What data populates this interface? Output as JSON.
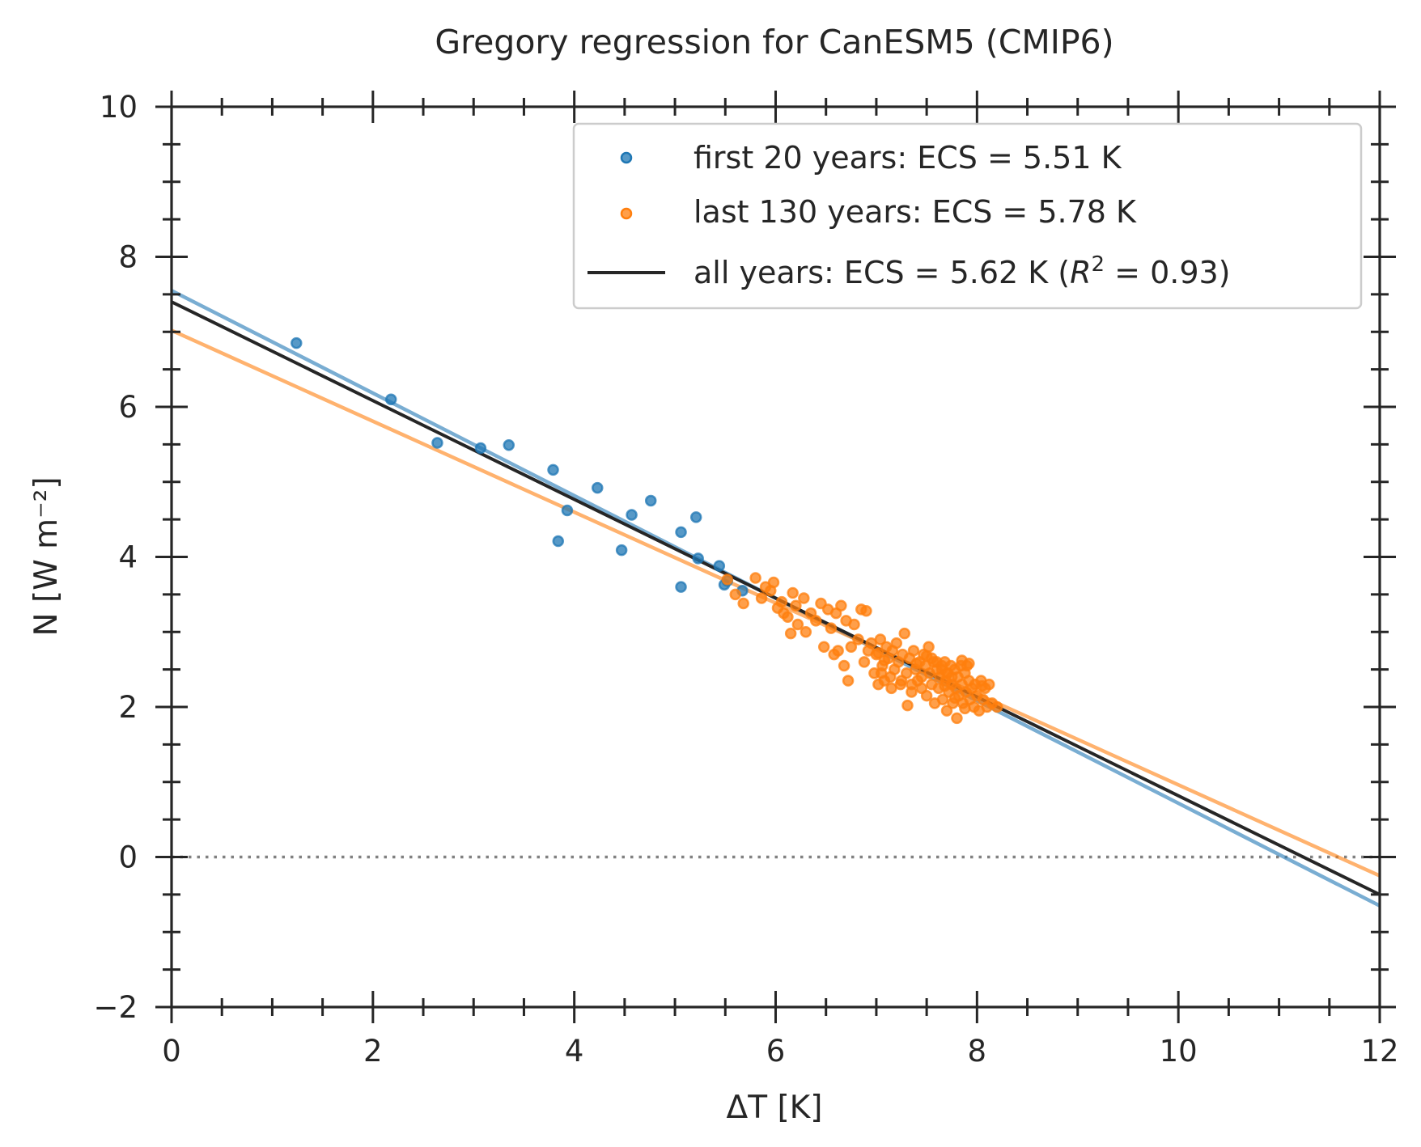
{
  "chart_data": {
    "type": "scatter",
    "title": "Gregory regression for CanESM5 (CMIP6)",
    "xlabel": "ΔT [K]",
    "ylabel": "N [W m⁻²]",
    "xlim": [
      0,
      12
    ],
    "ylim": [
      -2,
      10
    ],
    "x_ticks": [
      0,
      2,
      4,
      6,
      8,
      10,
      12
    ],
    "y_ticks": [
      -2,
      0,
      2,
      4,
      6,
      8,
      10
    ],
    "x_tick_labels": [
      "0",
      "2",
      "4",
      "6",
      "8",
      "10",
      "12"
    ],
    "y_tick_labels": [
      "−2",
      "0",
      "2",
      "4",
      "6",
      "8",
      "10"
    ],
    "grid": false,
    "zero_line": {
      "y": 0,
      "style": "dotted",
      "color": "#808080"
    },
    "legend_position": "top-right",
    "colors": {
      "first": "#1f77b4",
      "last": "#ff7f0e",
      "all": "#262626"
    },
    "legend": [
      {
        "label": "first 20 years: ECS = 5.51 K",
        "kind": "marker",
        "color": "#1f77b4"
      },
      {
        "label": "last 130 years: ECS = 5.78 K",
        "kind": "marker",
        "color": "#ff7f0e"
      },
      {
        "label_prefix": "all years: ECS = 5.62 K (",
        "label_r": "R",
        "label_sup": "2",
        "label_suffix": " = 0.93)",
        "kind": "line",
        "color": "#262626"
      }
    ],
    "regression_lines": [
      {
        "name": "first 20 years",
        "color": "#1f77b4",
        "x": [
          0,
          12
        ],
        "y": [
          7.55,
          -0.65
        ]
      },
      {
        "name": "last 130 years",
        "color": "#ff7f0e",
        "x": [
          0,
          12
        ],
        "y": [
          7.02,
          -0.25
        ]
      },
      {
        "name": "all years",
        "color": "#262626",
        "x": [
          0,
          12
        ],
        "y": [
          7.4,
          -0.5
        ]
      }
    ],
    "series": [
      {
        "name": "first 20 years",
        "color": "#1f77b4",
        "points": [
          [
            1.24,
            6.85
          ],
          [
            2.18,
            6.1
          ],
          [
            2.64,
            5.52
          ],
          [
            3.07,
            5.45
          ],
          [
            3.35,
            5.49
          ],
          [
            3.79,
            5.16
          ],
          [
            3.84,
            4.21
          ],
          [
            3.93,
            4.62
          ],
          [
            4.23,
            4.92
          ],
          [
            4.47,
            4.09
          ],
          [
            4.57,
            4.56
          ],
          [
            4.76,
            4.75
          ],
          [
            5.06,
            4.33
          ],
          [
            5.06,
            3.6
          ],
          [
            5.21,
            4.53
          ],
          [
            5.23,
            3.98
          ],
          [
            5.44,
            3.88
          ],
          [
            5.49,
            3.63
          ],
          [
            5.52,
            3.68
          ],
          [
            5.67,
            3.55
          ]
        ]
      },
      {
        "name": "last 130 years",
        "color": "#ff7f0e",
        "points": [
          [
            5.52,
            3.7
          ],
          [
            5.6,
            3.5
          ],
          [
            5.68,
            3.38
          ],
          [
            5.8,
            3.72
          ],
          [
            5.86,
            3.45
          ],
          [
            5.9,
            3.6
          ],
          [
            5.95,
            3.55
          ],
          [
            5.98,
            3.66
          ],
          [
            6.02,
            3.32
          ],
          [
            6.06,
            3.4
          ],
          [
            6.08,
            3.25
          ],
          [
            6.12,
            3.2
          ],
          [
            6.15,
            2.98
          ],
          [
            6.17,
            3.52
          ],
          [
            6.2,
            3.35
          ],
          [
            6.22,
            3.1
          ],
          [
            6.28,
            3.45
          ],
          [
            6.3,
            3.0
          ],
          [
            6.35,
            3.25
          ],
          [
            6.4,
            3.15
          ],
          [
            6.45,
            3.38
          ],
          [
            6.48,
            2.8
          ],
          [
            6.52,
            3.3
          ],
          [
            6.55,
            3.05
          ],
          [
            6.58,
            2.7
          ],
          [
            6.6,
            3.25
          ],
          [
            6.62,
            2.75
          ],
          [
            6.65,
            3.35
          ],
          [
            6.68,
            2.55
          ],
          [
            6.7,
            3.15
          ],
          [
            6.72,
            2.35
          ],
          [
            6.75,
            2.8
          ],
          [
            6.78,
            3.1
          ],
          [
            6.82,
            2.9
          ],
          [
            6.85,
            3.3
          ],
          [
            6.88,
            2.6
          ],
          [
            6.9,
            3.28
          ],
          [
            6.92,
            2.75
          ],
          [
            6.95,
            2.85
          ],
          [
            6.98,
            2.45
          ],
          [
            7.0,
            2.7
          ],
          [
            7.02,
            2.3
          ],
          [
            7.04,
            2.9
          ],
          [
            7.06,
            2.55
          ],
          [
            7.08,
            2.35
          ],
          [
            7.1,
            2.8
          ],
          [
            7.12,
            2.65
          ],
          [
            7.14,
            2.4
          ],
          [
            7.16,
            2.75
          ],
          [
            7.18,
            2.5
          ],
          [
            7.2,
            2.85
          ],
          [
            7.22,
            2.6
          ],
          [
            7.24,
            2.3
          ],
          [
            7.26,
            2.7
          ],
          [
            7.28,
            2.98
          ],
          [
            7.3,
            2.45
          ],
          [
            7.31,
            2.02
          ],
          [
            7.33,
            2.65
          ],
          [
            7.35,
            2.3
          ],
          [
            7.37,
            2.75
          ],
          [
            7.39,
            2.5
          ],
          [
            7.41,
            2.35
          ],
          [
            7.43,
            2.6
          ],
          [
            7.45,
            2.4
          ],
          [
            7.47,
            2.7
          ],
          [
            7.49,
            2.55
          ],
          [
            7.5,
            2.15
          ],
          [
            7.52,
            2.8
          ],
          [
            7.53,
            2.45
          ],
          [
            7.55,
            2.3
          ],
          [
            7.57,
            2.6
          ],
          [
            7.58,
            2.05
          ],
          [
            7.6,
            2.5
          ],
          [
            7.62,
            2.25
          ],
          [
            7.63,
            2.4
          ],
          [
            7.65,
            2.55
          ],
          [
            7.66,
            2.1
          ],
          [
            7.68,
            2.6
          ],
          [
            7.69,
            2.35
          ],
          [
            7.7,
            1.95
          ],
          [
            7.71,
            2.45
          ],
          [
            7.72,
            2.2
          ],
          [
            7.74,
            2.55
          ],
          [
            7.75,
            2.3
          ],
          [
            7.76,
            2.05
          ],
          [
            7.78,
            2.5
          ],
          [
            7.79,
            2.25
          ],
          [
            7.8,
            1.85
          ],
          [
            7.81,
            2.4
          ],
          [
            7.82,
            2.15
          ],
          [
            7.84,
            2.55
          ],
          [
            7.85,
            2.3
          ],
          [
            7.86,
            2.05
          ],
          [
            7.88,
            2.45
          ],
          [
            7.89,
            2.2
          ],
          [
            7.9,
            2.55
          ],
          [
            7.92,
            2.35
          ],
          [
            7.93,
            2.1
          ],
          [
            7.95,
            2.25
          ],
          [
            7.97,
            2.0
          ],
          [
            7.98,
            2.3
          ],
          [
            8.0,
            2.15
          ],
          [
            8.02,
            1.95
          ],
          [
            8.04,
            2.35
          ],
          [
            8.06,
            2.1
          ],
          [
            8.08,
            2.25
          ],
          [
            8.1,
            2.0
          ],
          [
            8.12,
            2.3
          ],
          [
            8.15,
            2.05
          ],
          [
            8.2,
            2.0
          ],
          [
            7.55,
            2.65
          ],
          [
            7.6,
            2.6
          ],
          [
            7.65,
            2.5
          ],
          [
            7.7,
            2.45
          ],
          [
            7.75,
            2.4
          ],
          [
            7.45,
            2.25
          ],
          [
            7.35,
            2.2
          ],
          [
            7.25,
            2.35
          ],
          [
            7.15,
            2.25
          ],
          [
            7.05,
            2.45
          ],
          [
            7.02,
            2.72
          ],
          [
            7.08,
            2.62
          ],
          [
            7.4,
            2.58
          ],
          [
            7.5,
            2.68
          ],
          [
            7.85,
            2.62
          ],
          [
            7.92,
            2.58
          ],
          [
            7.68,
            2.28
          ],
          [
            7.78,
            2.12
          ],
          [
            7.88,
            1.98
          ],
          [
            8.05,
            2.28
          ]
        ]
      }
    ]
  }
}
